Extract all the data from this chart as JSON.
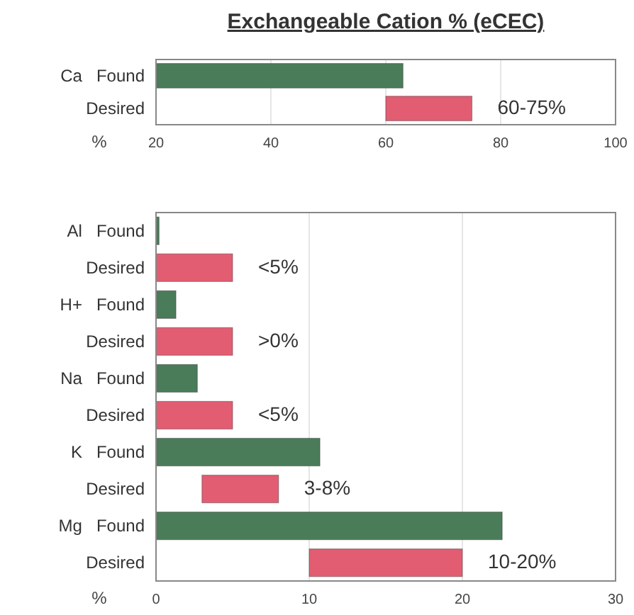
{
  "chart_data": [
    {
      "type": "bar",
      "orientation": "horizontal",
      "title": "Exchangeable Cation % (eCEC)",
      "xlabel": "%",
      "categories": [
        "Ca   Found",
        "Desired"
      ],
      "xlim": [
        20,
        100
      ],
      "xticks": [
        20,
        40,
        60,
        80,
        100
      ],
      "grid": "x",
      "series": [
        {
          "color": "#4a7c59",
          "values": [
            43,
            null
          ],
          "base": [
            20,
            null
          ]
        },
        {
          "color": "#e35d72",
          "values": [
            null,
            15
          ],
          "base": [
            null,
            60
          ]
        }
      ],
      "annotations": [
        "60-75%"
      ]
    },
    {
      "type": "bar",
      "orientation": "horizontal",
      "xlabel": "%",
      "categories": [
        "Al   Found",
        "Desired",
        "H+   Found",
        "Desired",
        "Na   Found",
        "Desired",
        "K   Found",
        "Desired",
        "Mg   Found",
        "Desired"
      ],
      "xlim": [
        0,
        30
      ],
      "xticks": [
        0,
        10,
        20,
        30
      ],
      "grid": "x",
      "series": [
        {
          "color": "#4a7c59",
          "values": [
            0.2,
            null,
            1.3,
            null,
            2.7,
            null,
            10.7,
            null,
            22.6,
            null
          ]
        },
        {
          "color": "#e35d72",
          "values": [
            null,
            5,
            null,
            5,
            null,
            5,
            null,
            5,
            null,
            10
          ],
          "base": [
            null,
            0,
            null,
            0,
            null,
            0,
            null,
            3,
            null,
            10
          ]
        }
      ],
      "annotations": [
        "<5%",
        ">0%",
        "<5%",
        "3-8%",
        "10-20%"
      ]
    }
  ]
}
